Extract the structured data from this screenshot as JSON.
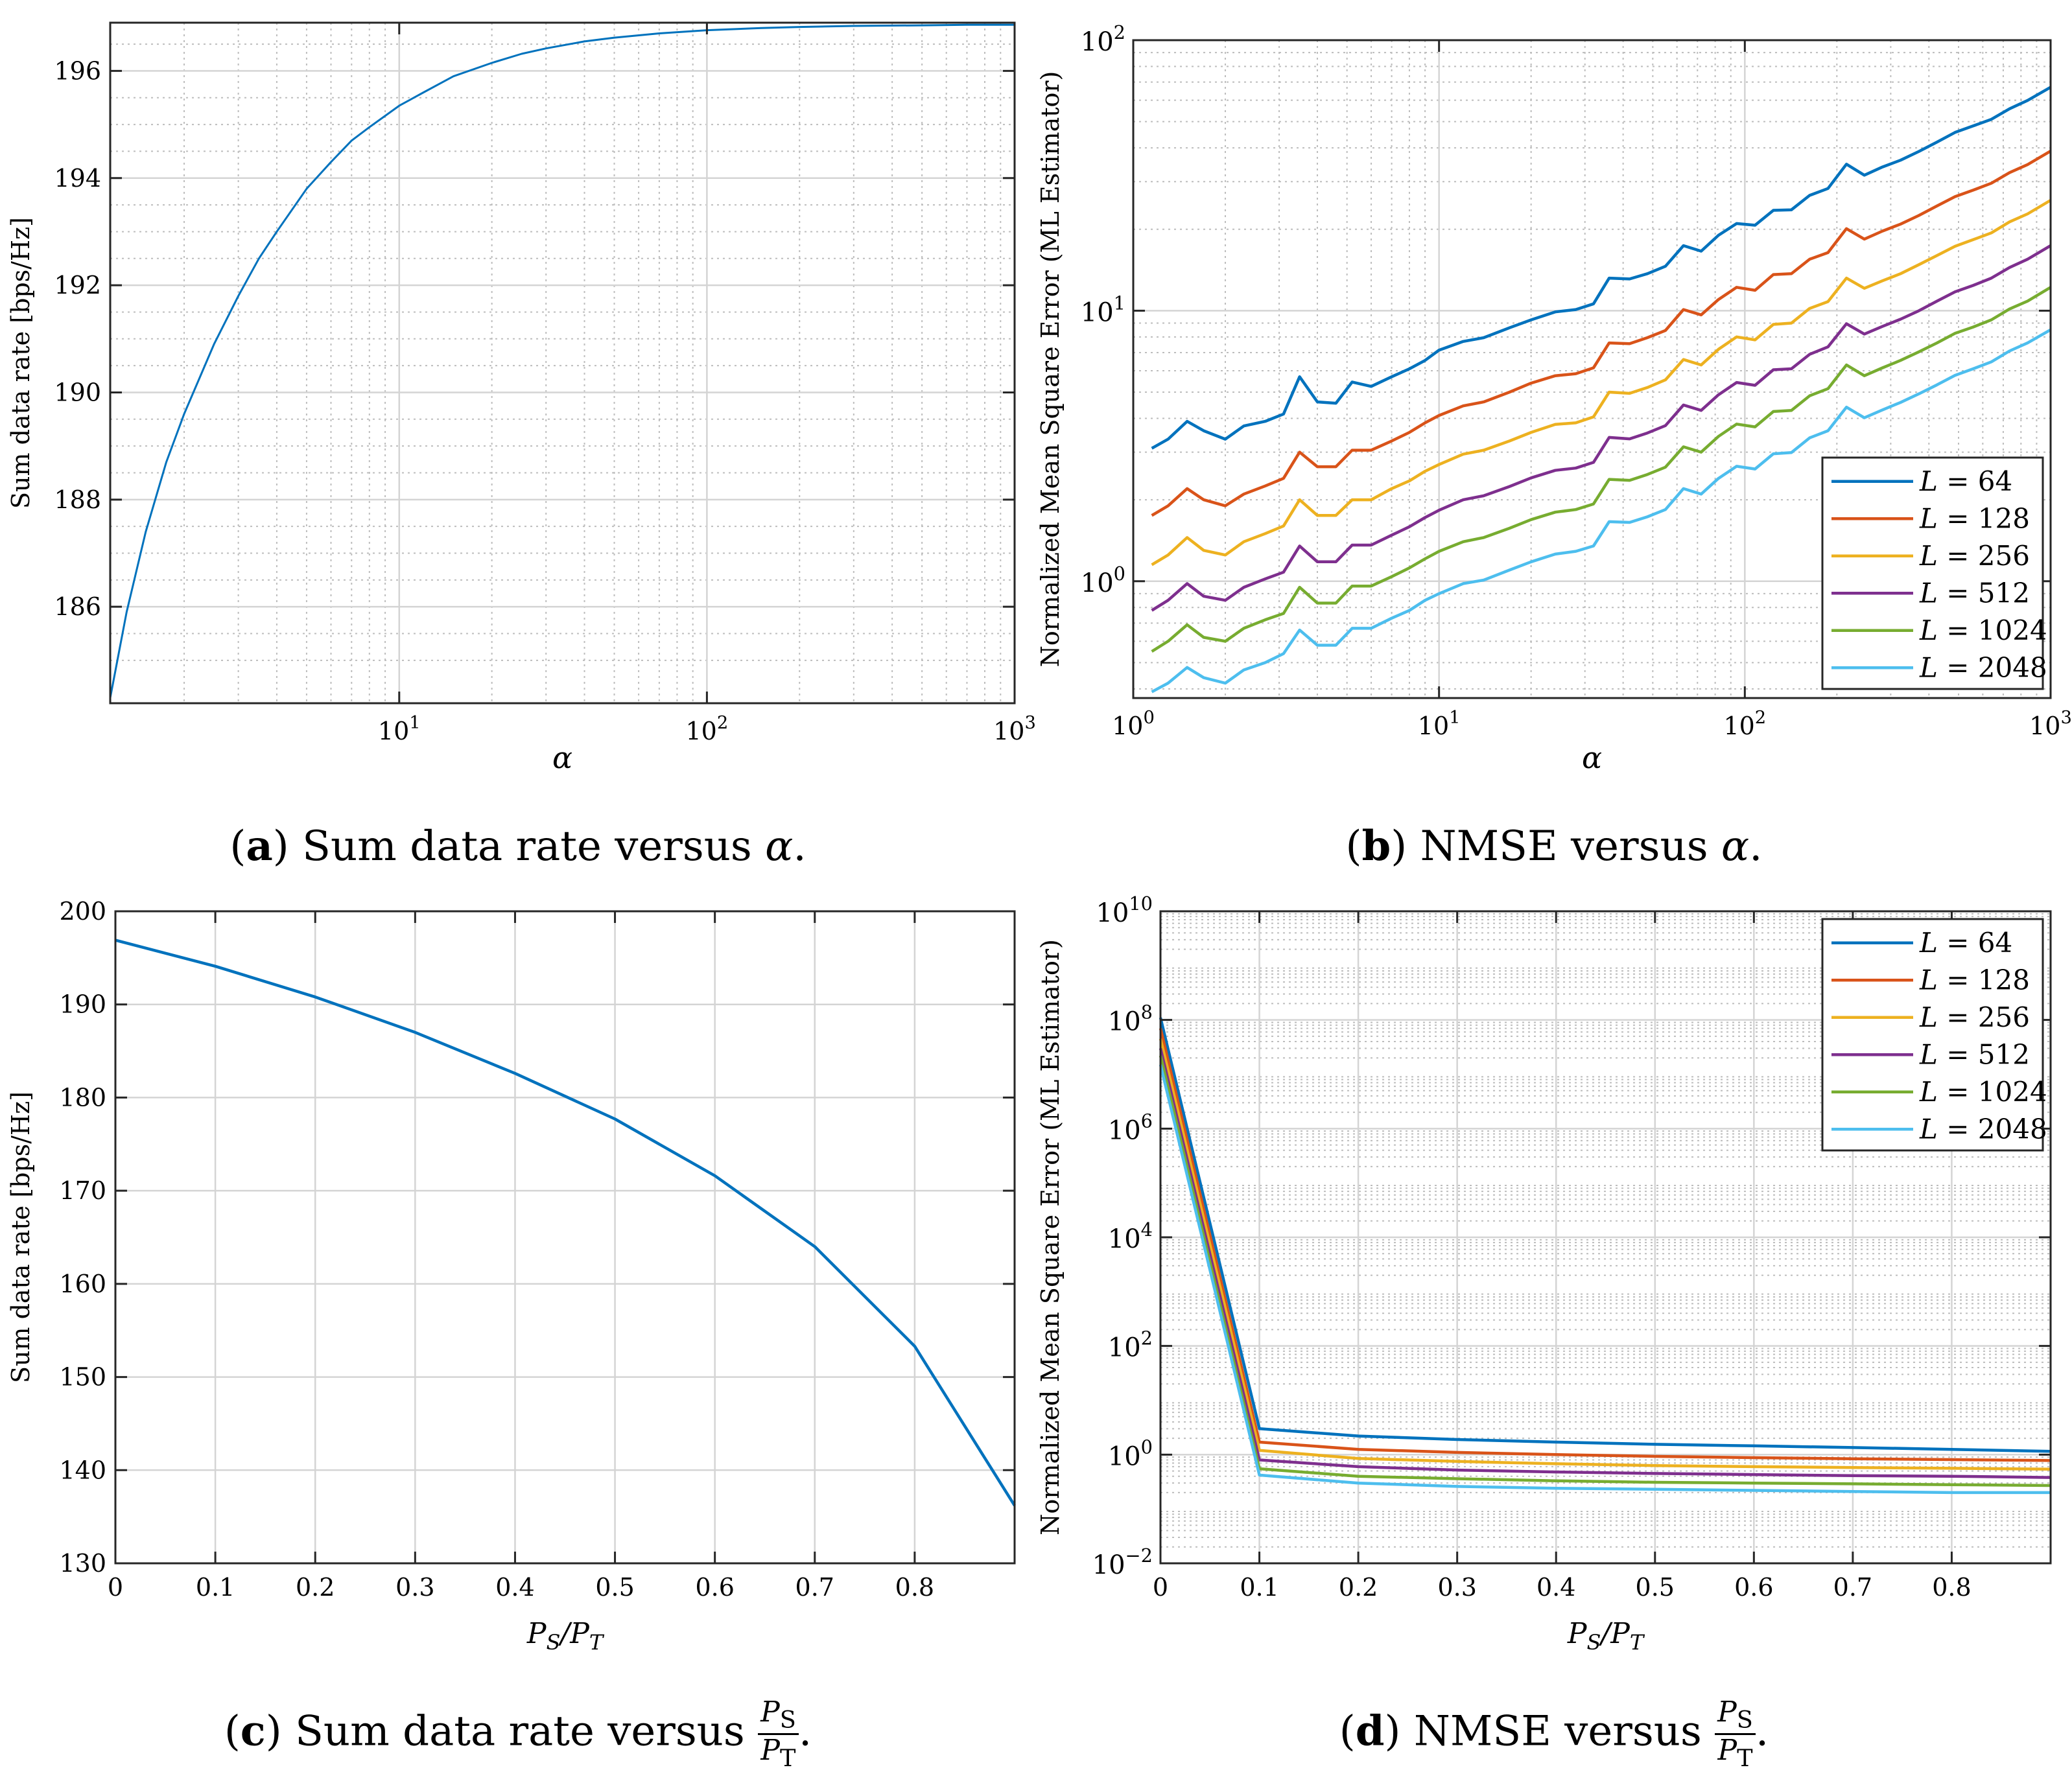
{
  "chart_data": [
    {
      "id": "a",
      "type": "line",
      "xscale": "log",
      "yscale": "linear",
      "xlim": [
        1.15,
        1000
      ],
      "ylim": [
        184.2,
        196.9
      ],
      "xticks": [
        10,
        100,
        1000
      ],
      "xtick_labels": [
        {
          "base": "10",
          "exp": "1"
        },
        {
          "base": "10",
          "exp": "2"
        },
        {
          "base": "10",
          "exp": "3"
        }
      ],
      "yticks": [
        186,
        188,
        190,
        192,
        194,
        196
      ],
      "ytick_labels": [
        "186",
        "188",
        "190",
        "192",
        "194",
        "196"
      ],
      "xlabel": "α",
      "ylabel": "Sum data rate [bps/Hz]",
      "grid": true,
      "series": [
        {
          "name": "Sum data rate",
          "color": "#0072BD",
          "x": [
            1.15,
            1.3,
            1.5,
            1.75,
            2,
            2.5,
            3,
            3.5,
            4,
            5,
            6,
            7,
            8,
            10,
            12,
            15,
            20,
            25,
            30,
            40,
            50,
            70,
            100,
            150,
            200,
            300,
            500,
            700,
            1000
          ],
          "y": [
            184.3,
            185.9,
            187.4,
            188.7,
            189.6,
            190.9,
            191.8,
            192.5,
            193.0,
            193.8,
            194.3,
            194.7,
            194.95,
            195.35,
            195.6,
            195.9,
            196.15,
            196.32,
            196.42,
            196.55,
            196.62,
            196.7,
            196.76,
            196.8,
            196.82,
            196.84,
            196.85,
            196.86,
            196.86
          ]
        }
      ]
    },
    {
      "id": "b",
      "type": "line",
      "xscale": "log",
      "yscale": "log",
      "xlim": [
        1,
        1000
      ],
      "ylim": [
        0.37,
        100
      ],
      "xticks": [
        1,
        10,
        100,
        1000
      ],
      "xtick_labels": [
        {
          "base": "10",
          "exp": "0"
        },
        {
          "base": "10",
          "exp": "1"
        },
        {
          "base": "10",
          "exp": "2"
        },
        {
          "base": "10",
          "exp": "3"
        }
      ],
      "yticks": [
        1,
        10,
        100
      ],
      "ytick_labels": [
        {
          "base": "10",
          "exp": "0"
        },
        {
          "base": "10",
          "exp": "1"
        },
        {
          "base": "10",
          "exp": "2"
        }
      ],
      "xlabel": "α",
      "ylabel": "Normalized Mean Square Error (ML Estimator)",
      "grid": true,
      "legend_position": "bottom-right",
      "x": [
        1.15,
        1.3,
        1.5,
        1.7,
        2,
        2.3,
        2.7,
        3.1,
        3.5,
        4,
        4.6,
        5.2,
        6,
        7,
        8,
        9,
        10,
        12,
        14,
        17,
        20,
        24,
        28,
        32,
        36,
        42,
        48,
        55,
        63,
        72,
        82,
        94,
        108,
        124,
        142,
        163,
        187,
        215,
        246,
        282,
        323,
        371,
        425,
        487,
        558,
        640,
        734,
        841,
        1000
      ],
      "series": [
        {
          "name": "L = 64",
          "color": "#0072BD",
          "values": [
            3.1,
            3.35,
            3.9,
            3.6,
            3.35,
            3.75,
            3.9,
            4.15,
            5.7,
            4.6,
            4.55,
            5.45,
            5.25,
            5.7,
            6.1,
            6.55,
            7.15,
            7.7,
            7.95,
            8.65,
            9.25,
            9.9,
            10.1,
            10.6,
            13.2,
            13.1,
            13.7,
            14.6,
            17.4,
            16.6,
            19.0,
            21.0,
            20.7,
            23.5,
            23.6,
            26.7,
            28.3,
            34.8,
            31.7,
            34.0,
            36.0,
            38.8,
            42.0,
            45.6,
            48.2,
            51.0,
            55.8,
            59.9,
            67.0
          ]
        },
        {
          "name": "L = 128",
          "color": "#D95319",
          "values": [
            1.75,
            1.9,
            2.2,
            2.0,
            1.9,
            2.1,
            2.25,
            2.4,
            3.0,
            2.65,
            2.65,
            3.05,
            3.05,
            3.3,
            3.55,
            3.85,
            4.1,
            4.45,
            4.6,
            5.0,
            5.4,
            5.75,
            5.85,
            6.15,
            7.6,
            7.55,
            7.95,
            8.45,
            10.1,
            9.65,
            11.0,
            12.2,
            11.9,
            13.6,
            13.7,
            15.5,
            16.4,
            20.1,
            18.4,
            19.7,
            20.9,
            22.5,
            24.4,
            26.4,
            27.9,
            29.6,
            32.4,
            34.7,
            38.9
          ]
        },
        {
          "name": "L = 256",
          "color": "#EDB120",
          "values": [
            1.15,
            1.25,
            1.45,
            1.3,
            1.25,
            1.4,
            1.5,
            1.6,
            2.0,
            1.75,
            1.75,
            2.0,
            2.0,
            2.2,
            2.35,
            2.55,
            2.7,
            2.95,
            3.05,
            3.3,
            3.55,
            3.8,
            3.85,
            4.05,
            5.0,
            4.95,
            5.2,
            5.55,
            6.6,
            6.3,
            7.2,
            8.0,
            7.8,
            8.9,
            9.0,
            10.2,
            10.8,
            13.2,
            12.1,
            12.9,
            13.7,
            14.8,
            16.0,
            17.3,
            18.3,
            19.4,
            21.3,
            22.8,
            25.6
          ]
        },
        {
          "name": "L = 512",
          "color": "#7E2F8E",
          "values": [
            0.78,
            0.85,
            0.98,
            0.88,
            0.85,
            0.95,
            1.02,
            1.08,
            1.35,
            1.18,
            1.18,
            1.36,
            1.36,
            1.48,
            1.59,
            1.72,
            1.83,
            2.0,
            2.07,
            2.24,
            2.41,
            2.57,
            2.62,
            2.75,
            3.4,
            3.36,
            3.53,
            3.76,
            4.48,
            4.28,
            4.89,
            5.43,
            5.3,
            6.05,
            6.1,
            6.9,
            7.35,
            8.95,
            8.2,
            8.75,
            9.3,
            10.0,
            10.85,
            11.75,
            12.4,
            13.2,
            14.45,
            15.5,
            17.4
          ]
        },
        {
          "name": "L = 1024",
          "color": "#77AC30",
          "values": [
            0.55,
            0.6,
            0.69,
            0.62,
            0.6,
            0.67,
            0.72,
            0.76,
            0.95,
            0.83,
            0.83,
            0.96,
            0.96,
            1.04,
            1.12,
            1.21,
            1.29,
            1.4,
            1.45,
            1.57,
            1.69,
            1.8,
            1.84,
            1.93,
            2.38,
            2.36,
            2.48,
            2.64,
            3.14,
            3.0,
            3.43,
            3.81,
            3.72,
            4.24,
            4.28,
            4.85,
            5.15,
            6.3,
            5.75,
            6.15,
            6.55,
            7.05,
            7.6,
            8.25,
            8.7,
            9.25,
            10.15,
            10.85,
            12.2
          ]
        },
        {
          "name": "L = 2048",
          "color": "#4DBEEE",
          "values": [
            0.39,
            0.42,
            0.48,
            0.44,
            0.42,
            0.47,
            0.5,
            0.54,
            0.66,
            0.58,
            0.58,
            0.67,
            0.67,
            0.73,
            0.78,
            0.85,
            0.9,
            0.98,
            1.01,
            1.1,
            1.18,
            1.26,
            1.29,
            1.35,
            1.66,
            1.65,
            1.73,
            1.84,
            2.2,
            2.1,
            2.4,
            2.66,
            2.6,
            2.96,
            2.99,
            3.39,
            3.6,
            4.4,
            4.02,
            4.3,
            4.58,
            4.93,
            5.32,
            5.77,
            6.1,
            6.47,
            7.1,
            7.6,
            8.5
          ]
        }
      ]
    },
    {
      "id": "c",
      "type": "line",
      "xscale": "linear",
      "yscale": "linear",
      "xlim": [
        0,
        0.9
      ],
      "ylim": [
        130,
        200
      ],
      "xticks": [
        0,
        0.1,
        0.2,
        0.3,
        0.4,
        0.5,
        0.6,
        0.7,
        0.8
      ],
      "xtick_labels": [
        "0",
        "0.1",
        "0.2",
        "0.3",
        "0.4",
        "0.5",
        "0.6",
        "0.7",
        "0.8"
      ],
      "yticks": [
        130,
        140,
        150,
        160,
        170,
        180,
        190,
        200
      ],
      "ytick_labels": [
        "130",
        "140",
        "150",
        "160",
        "170",
        "180",
        "190",
        "200"
      ],
      "xlabel": "P_S/P_T",
      "ylabel": "Sum data rate [bps/Hz]",
      "grid": true,
      "series": [
        {
          "name": "Sum data rate",
          "color": "#0072BD",
          "x": [
            0,
            0.1,
            0.2,
            0.3,
            0.4,
            0.5,
            0.6,
            0.7,
            0.8,
            0.9
          ],
          "y": [
            196.9,
            194.1,
            190.8,
            187.0,
            182.6,
            177.7,
            171.6,
            164.0,
            153.3,
            136.2
          ]
        }
      ]
    },
    {
      "id": "d",
      "type": "line",
      "xscale": "linear",
      "yscale": "log",
      "xlim": [
        0,
        0.9
      ],
      "ylim": [
        0.01,
        10000000000
      ],
      "xticks": [
        0,
        0.1,
        0.2,
        0.3,
        0.4,
        0.5,
        0.6,
        0.7,
        0.8
      ],
      "xtick_labels": [
        "0",
        "0.1",
        "0.2",
        "0.3",
        "0.4",
        "0.5",
        "0.6",
        "0.7",
        "0.8"
      ],
      "yticks": [
        0.01,
        1,
        100,
        10000,
        1000000,
        100000000,
        10000000000
      ],
      "ytick_labels": [
        {
          "base": "10",
          "exp": "−2"
        },
        {
          "base": "10",
          "exp": "0"
        },
        {
          "base": "10",
          "exp": "2"
        },
        {
          "base": "10",
          "exp": "4"
        },
        {
          "base": "10",
          "exp": "6"
        },
        {
          "base": "10",
          "exp": "8"
        },
        {
          "base": "10",
          "exp": "10"
        }
      ],
      "xlabel": "P_S/P_T",
      "ylabel": "Normalized Mean Square Error (ML Estimator)",
      "grid": true,
      "legend_position": "top-right",
      "x": [
        0,
        0.1,
        0.2,
        0.3,
        0.4,
        0.5,
        0.6,
        0.7,
        0.8,
        0.9
      ],
      "series": [
        {
          "name": "L = 64",
          "color": "#0072BD",
          "values": [
            110000000,
            3.0,
            2.2,
            1.9,
            1.7,
            1.55,
            1.45,
            1.35,
            1.25,
            1.15
          ]
        },
        {
          "name": "L = 128",
          "color": "#D95319",
          "values": [
            70000000,
            1.7,
            1.25,
            1.1,
            1.0,
            0.93,
            0.88,
            0.84,
            0.81,
            0.78
          ]
        },
        {
          "name": "L = 256",
          "color": "#EDB120",
          "values": [
            45000000,
            1.2,
            0.85,
            0.75,
            0.68,
            0.63,
            0.6,
            0.58,
            0.56,
            0.54
          ]
        },
        {
          "name": "L = 512",
          "color": "#7E2F8E",
          "values": [
            30000000,
            0.8,
            0.6,
            0.52,
            0.48,
            0.45,
            0.43,
            0.41,
            0.4,
            0.38
          ]
        },
        {
          "name": "L = 1024",
          "color": "#77AC30",
          "values": [
            22000000,
            0.55,
            0.4,
            0.36,
            0.33,
            0.31,
            0.3,
            0.29,
            0.28,
            0.27
          ]
        },
        {
          "name": "L = 2048",
          "color": "#4DBEEE",
          "values": [
            15000000,
            0.42,
            0.3,
            0.26,
            0.24,
            0.23,
            0.22,
            0.21,
            0.2,
            0.2
          ]
        }
      ]
    }
  ],
  "captions": {
    "a": {
      "letter": "a",
      "text": "Sum data rate versus ",
      "sym": "α"
    },
    "b": {
      "letter": "b",
      "text": "NMSE versus ",
      "sym": "α"
    },
    "c": {
      "letter": "c",
      "text": "Sum data rate versus ",
      "num": "P",
      "num_sub": "S",
      "den": "P",
      "den_sub": "T"
    },
    "d": {
      "letter": "d",
      "text": "NMSE versus ",
      "num": "P",
      "num_sub": "S",
      "den": "P",
      "den_sub": "T"
    }
  },
  "legend_label_prefix": "L = "
}
